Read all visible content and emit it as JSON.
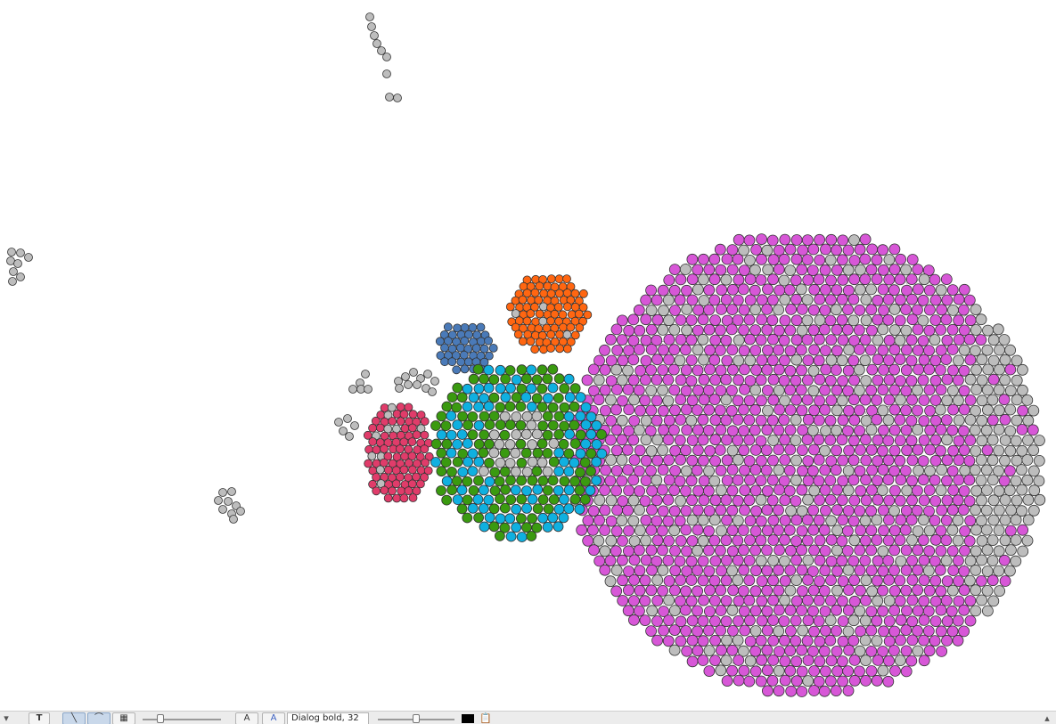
{
  "colors": {
    "magenta": "#d757d7",
    "gray": "#bdbdbd",
    "orange": "#ff6611",
    "blue": "#4a7ab8",
    "red": "#e03c6a",
    "green": "#3a9a10",
    "cyan": "#10b0e0",
    "edge": "#555555",
    "background": "#ffffff"
  },
  "toolbar": {
    "left_icon": "menu-arrow-icon",
    "text_tool_label": "T",
    "edge_mode_icons": [
      "straight-edge-icon",
      "curved-edge-icon",
      "grid-icon"
    ],
    "font_size_a_label": "A",
    "font_color_a_label": "A",
    "font_field_value": "Dialog bold, 32",
    "color_swatch": "#000000",
    "clipboard_icon": "clipboard-icon",
    "node_size_slider_value": 0.2,
    "label_size_slider_value": 0.5,
    "right_icon": "scroll-up-icon"
  }
}
